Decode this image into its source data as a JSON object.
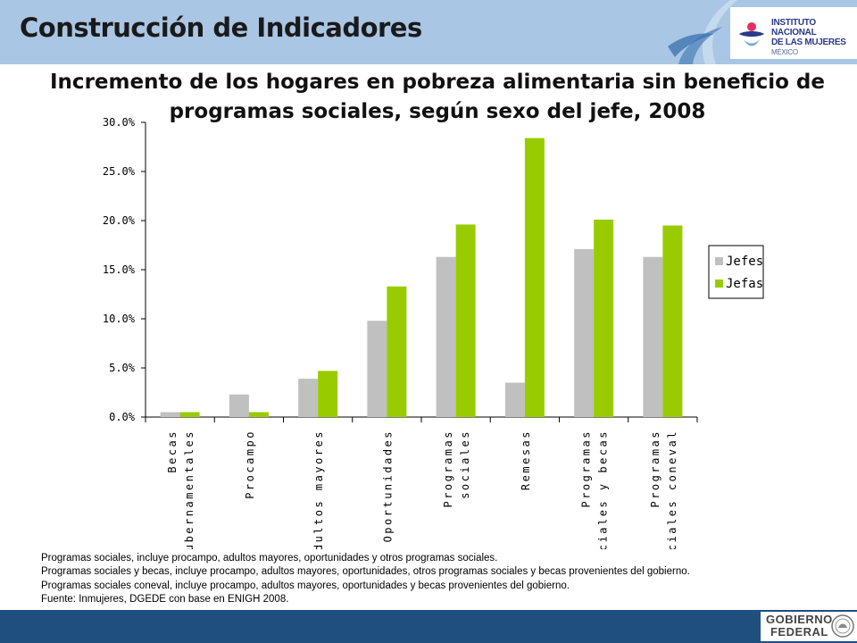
{
  "header": {
    "title": "Construcción de Indicadores",
    "logo_text_line1": "INSTITUTO NACIONAL",
    "logo_text_line2": "DE LAS MUJERES",
    "logo_text_line3": "MÉXICO",
    "logo_icon": "inmujeres-logo-icon"
  },
  "chart_data": {
    "type": "bar",
    "title": "Incremento de los hogares en pobreza alimentaria sin beneficio de programas sociales, según sexo del jefe, 2008",
    "categories": [
      [
        "Becas",
        "gubernamentales"
      ],
      [
        "Procampo"
      ],
      [
        "Adultos mayores"
      ],
      [
        "Oportunidades"
      ],
      [
        "Programas",
        "sociales"
      ],
      [
        "Remesas"
      ],
      [
        "Programas",
        "sociales y becas"
      ],
      [
        "Programas",
        "sociales coneval"
      ]
    ],
    "series": [
      {
        "name": "Jefes",
        "color": "#c0c0c0",
        "values": [
          0.5,
          2.3,
          3.9,
          9.8,
          16.3,
          3.5,
          17.1,
          16.3
        ]
      },
      {
        "name": "Jefas",
        "color": "#99cc00",
        "values": [
          0.5,
          0.5,
          4.7,
          13.3,
          19.6,
          28.4,
          20.1,
          19.5
        ]
      }
    ],
    "ylim": [
      0,
      30
    ],
    "yticks": [
      "0.0%",
      "5.0%",
      "10.0%",
      "15.0%",
      "20.0%",
      "25.0%",
      "30.0%"
    ],
    "legend_position": "right",
    "grid": false
  },
  "notes": [
    "Programas sociales, incluye procampo, adultos mayores, oportunidades y otros programas sociales.",
    "Programas sociales y becas, incluye procampo, adultos mayores, oportunidades, otros programas sociales y becas provenientes del gobierno.",
    "Programas sociales coneval, incluye procampo, adultos mayores, oportunidades y becas provenientes del gobierno.",
    "Fuente: Inmujeres, DGEDE con base en ENIGH 2008."
  ],
  "footer": {
    "gov_line1": "GOBIERNO",
    "gov_line2": "FEDERAL",
    "seal_icon": "mexico-seal-icon"
  }
}
